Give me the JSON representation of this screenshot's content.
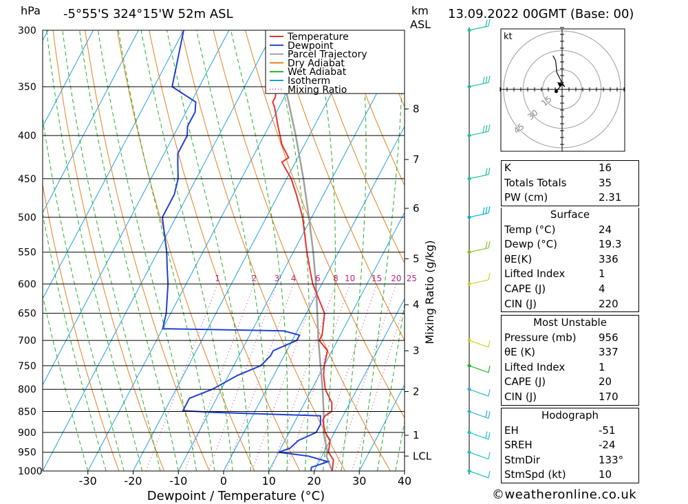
{
  "header": {
    "units_hpa": "hPa",
    "location": "-5°55'S  324°15'W  52m  ASL",
    "units_km": "km",
    "units_asl": "ASL",
    "datetime": "13.09.2022  00GMT  (Base: 00)"
  },
  "chart_data": {
    "type": "skew-t log-p sounding",
    "xlabel": "Dewpoint / Temperature (°C)",
    "ylabel_left": "hPa",
    "ylabel_right": "Mixing Ratio (g/kg)",
    "pressure_ticks": [
      300,
      350,
      400,
      450,
      500,
      550,
      600,
      650,
      700,
      750,
      800,
      850,
      900,
      950,
      1000
    ],
    "temperature_ticks": [
      -30,
      -20,
      -10,
      0,
      10,
      20,
      30,
      40
    ],
    "temperature_range_at_1000hpa": [
      -40,
      40
    ],
    "km_ticks": [
      {
        "label": "8",
        "p": 372
      },
      {
        "label": "7",
        "p": 427
      },
      {
        "label": "6",
        "p": 488
      },
      {
        "label": "5",
        "p": 560
      },
      {
        "label": "4",
        "p": 635
      },
      {
        "label": "3",
        "p": 720
      },
      {
        "label": "2",
        "p": 805
      },
      {
        "label": "1",
        "p": 907
      },
      {
        "label": "LCL",
        "p": 960
      }
    ],
    "mixing_ratio_labels": [
      "1",
      "2",
      "3",
      "4",
      "6",
      "8",
      "10",
      "15",
      "20",
      "25"
    ],
    "mixing_ratio_values": [
      1,
      2,
      3,
      4,
      6,
      8,
      10,
      15,
      20,
      25
    ],
    "legend": [
      {
        "name": "Temperature",
        "color": "#e83030",
        "style": "solid"
      },
      {
        "name": "Dewpoint",
        "color": "#2040d0",
        "style": "solid"
      },
      {
        "name": "Parcel Trajectory",
        "color": "#a0a0a0",
        "style": "solid"
      },
      {
        "name": "Dry Adiabat",
        "color": "#e08020",
        "style": "solid"
      },
      {
        "name": "Wet Adiabat",
        "color": "#20b020",
        "style": "solid"
      },
      {
        "name": "Isotherm",
        "color": "#1e9ee0",
        "style": "solid"
      },
      {
        "name": "Mixing Ratio",
        "color": "#c02080",
        "style": "dotted"
      }
    ],
    "series": [
      {
        "name": "Temperature",
        "points": [
          [
            1000,
            24
          ],
          [
            970,
            23
          ],
          [
            950,
            21
          ],
          [
            920,
            20
          ],
          [
            900,
            18
          ],
          [
            870,
            16
          ],
          [
            860,
            16
          ],
          [
            850,
            17
          ],
          [
            830,
            16
          ],
          [
            800,
            13
          ],
          [
            770,
            11
          ],
          [
            750,
            10
          ],
          [
            720,
            9
          ],
          [
            700,
            6
          ],
          [
            690,
            6
          ],
          [
            650,
            4
          ],
          [
            600,
            -2
          ],
          [
            580,
            -4
          ],
          [
            550,
            -7
          ],
          [
            500,
            -12
          ],
          [
            470,
            -16
          ],
          [
            450,
            -19
          ],
          [
            430,
            -23
          ],
          [
            425,
            -22
          ],
          [
            410,
            -25
          ],
          [
            390,
            -28
          ],
          [
            370,
            -31
          ],
          [
            365,
            -32
          ],
          [
            360,
            -32
          ],
          [
            330,
            -35
          ],
          [
            300,
            -40
          ]
        ]
      },
      {
        "name": "Dewpoint",
        "points": [
          [
            1000,
            19.3
          ],
          [
            990,
            19
          ],
          [
            975,
            22
          ],
          [
            960,
            17
          ],
          [
            950,
            10
          ],
          [
            940,
            12
          ],
          [
            920,
            13
          ],
          [
            900,
            16
          ],
          [
            880,
            16
          ],
          [
            860,
            15
          ],
          [
            852,
            -9
          ],
          [
            848,
            -16
          ],
          [
            820,
            -16
          ],
          [
            800,
            -12
          ],
          [
            770,
            -8
          ],
          [
            750,
            -4
          ],
          [
            730,
            -3
          ],
          [
            720,
            -3
          ],
          [
            700,
            1
          ],
          [
            690,
            1
          ],
          [
            682,
            -3
          ],
          [
            678,
            -30
          ],
          [
            650,
            -31
          ],
          [
            600,
            -34
          ],
          [
            575,
            -36
          ],
          [
            550,
            -38
          ],
          [
            500,
            -43
          ],
          [
            470,
            -43
          ],
          [
            450,
            -44
          ],
          [
            430,
            -46
          ],
          [
            420,
            -47
          ],
          [
            400,
            -47
          ],
          [
            390,
            -48
          ],
          [
            375,
            -48
          ],
          [
            365,
            -49
          ],
          [
            350,
            -56
          ],
          [
            300,
            -60
          ]
        ]
      },
      {
        "name": "Parcel Trajectory",
        "points": [
          [
            1000,
            24
          ],
          [
            960,
            21
          ],
          [
            950,
            20.8
          ],
          [
            900,
            17.6
          ],
          [
            850,
            15.2
          ],
          [
            800,
            12.4
          ],
          [
            750,
            9.2
          ],
          [
            700,
            5.8
          ],
          [
            650,
            2.4
          ],
          [
            600,
            -1.3
          ],
          [
            550,
            -5.6
          ],
          [
            500,
            -10.6
          ],
          [
            450,
            -16.3
          ],
          [
            400,
            -23.0
          ],
          [
            350,
            -31.0
          ],
          [
            300,
            -41.0
          ]
        ]
      }
    ],
    "hodograph": {
      "units": "kt",
      "ring_labels": [
        "15",
        "30",
        "45"
      ],
      "ring_speeds": [
        15,
        30,
        45
      ],
      "points": [
        [
          -4.5,
          -1.5
        ],
        [
          -2,
          1.5
        ],
        [
          0,
          4
        ],
        [
          2,
          2
        ],
        [
          0,
          5
        ],
        [
          -4,
          13
        ],
        [
          -5,
          22
        ],
        [
          -7,
          26
        ]
      ]
    },
    "wind_profile": [
      {
        "p": 1000,
        "speed": 10,
        "dir": 130
      },
      {
        "p": 950,
        "speed": 12,
        "dir": 120
      },
      {
        "p": 900,
        "speed": 15,
        "dir": 110
      },
      {
        "p": 850,
        "speed": 15,
        "dir": 110
      },
      {
        "p": 800,
        "speed": 12,
        "dir": 120
      },
      {
        "p": 750,
        "speed": 10,
        "dir": 140
      },
      {
        "p": 700,
        "speed": 8,
        "dir": 180
      },
      {
        "p": 600,
        "speed": 10,
        "dir": 270
      },
      {
        "p": 550,
        "speed": 20,
        "dir": 280
      },
      {
        "p": 500,
        "speed": 25,
        "dir": 285
      },
      {
        "p": 450,
        "speed": 20,
        "dir": 285
      },
      {
        "p": 400,
        "speed": 25,
        "dir": 290
      },
      {
        "p": 350,
        "speed": 25,
        "dir": 290
      },
      {
        "p": 300,
        "speed": 20,
        "dir": 275
      }
    ]
  },
  "indices": {
    "rows": [
      {
        "label": "K",
        "value": "16"
      },
      {
        "label": "Totals Totals",
        "value": "35"
      },
      {
        "label": "PW (cm)",
        "value": "2.31"
      }
    ]
  },
  "surface": {
    "title": "Surface",
    "rows": [
      {
        "label": "Temp (°C)",
        "value": "24"
      },
      {
        "label": "Dewp (°C)",
        "value": "19.3"
      },
      {
        "label": "θE(K)",
        "value": "336"
      },
      {
        "label": "Lifted Index",
        "value": "1"
      },
      {
        "label": "CAPE (J)",
        "value": "4"
      },
      {
        "label": "CIN (J)",
        "value": "220"
      }
    ]
  },
  "most_unstable": {
    "title": "Most Unstable",
    "rows": [
      {
        "label": "Pressure (mb)",
        "value": "956"
      },
      {
        "label": "θE (K)",
        "value": "337"
      },
      {
        "label": "Lifted Index",
        "value": "1"
      },
      {
        "label": "CAPE (J)",
        "value": "20"
      },
      {
        "label": "CIN (J)",
        "value": "170"
      }
    ]
  },
  "hodograph_table": {
    "title": "Hodograph",
    "rows": [
      {
        "label": "EH",
        "value": "-51"
      },
      {
        "label": "SREH",
        "value": "-24"
      },
      {
        "label": "StmDir",
        "value": "133°"
      },
      {
        "label": "StmSpd (kt)",
        "value": "10"
      }
    ]
  },
  "footer": {
    "credit": "©weatheronline.co.uk"
  }
}
